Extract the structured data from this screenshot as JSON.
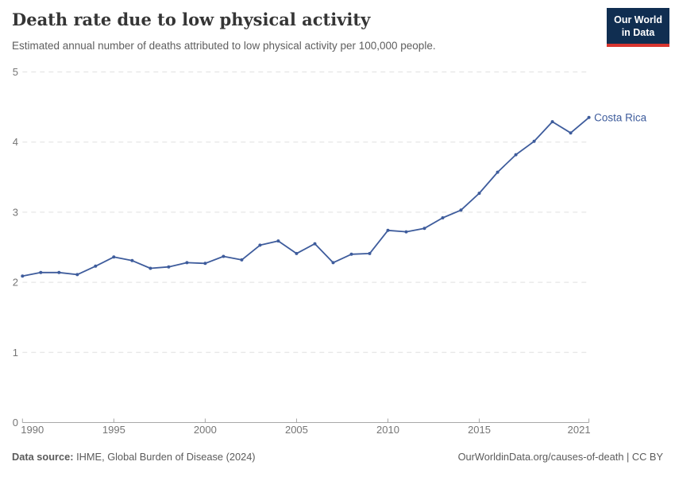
{
  "header": {
    "title": "Death rate due to low physical activity",
    "subtitle": "Estimated annual number of deaths attributed to low physical activity per 100,000 people.",
    "logo": {
      "line1": "Our World",
      "line2": "in Data"
    }
  },
  "footer": {
    "source_label": "Data source:",
    "source_value": "IHME, Global Burden of Disease (2024)",
    "credit": "OurWorldinData.org/causes-of-death | CC BY"
  },
  "colors": {
    "series_line": "#3e5c9c",
    "logo_background": "#102e51",
    "logo_bar": "#d8352f",
    "grid": "#e0e0e0",
    "axis": "#a8a8a8"
  },
  "chart_data": {
    "type": "line",
    "title": "Death rate due to low physical activity",
    "xlabel": "",
    "ylabel": "",
    "xlim": [
      1990,
      2021
    ],
    "ylim": [
      0,
      5
    ],
    "x_ticks": [
      1990,
      1995,
      2000,
      2005,
      2010,
      2015,
      2021
    ],
    "y_ticks": [
      0,
      1,
      2,
      3,
      4,
      5
    ],
    "grid": "horizontal dashed",
    "legend_position": "end-of-line label",
    "series": [
      {
        "name": "Costa Rica",
        "color": "#3e5c9c",
        "x": [
          1990,
          1991,
          1992,
          1993,
          1994,
          1995,
          1996,
          1997,
          1998,
          1999,
          2000,
          2001,
          2002,
          2003,
          2004,
          2005,
          2006,
          2007,
          2008,
          2009,
          2010,
          2011,
          2012,
          2013,
          2014,
          2015,
          2016,
          2017,
          2018,
          2019,
          2020,
          2021
        ],
        "values": [
          2.09,
          2.14,
          2.14,
          2.11,
          2.23,
          2.36,
          2.31,
          2.2,
          2.22,
          2.28,
          2.27,
          2.37,
          2.32,
          2.53,
          2.59,
          2.41,
          2.55,
          2.28,
          2.4,
          2.41,
          2.74,
          2.72,
          2.77,
          2.92,
          3.03,
          3.27,
          3.57,
          3.82,
          4.01,
          4.29,
          4.13,
          4.35
        ]
      }
    ]
  }
}
